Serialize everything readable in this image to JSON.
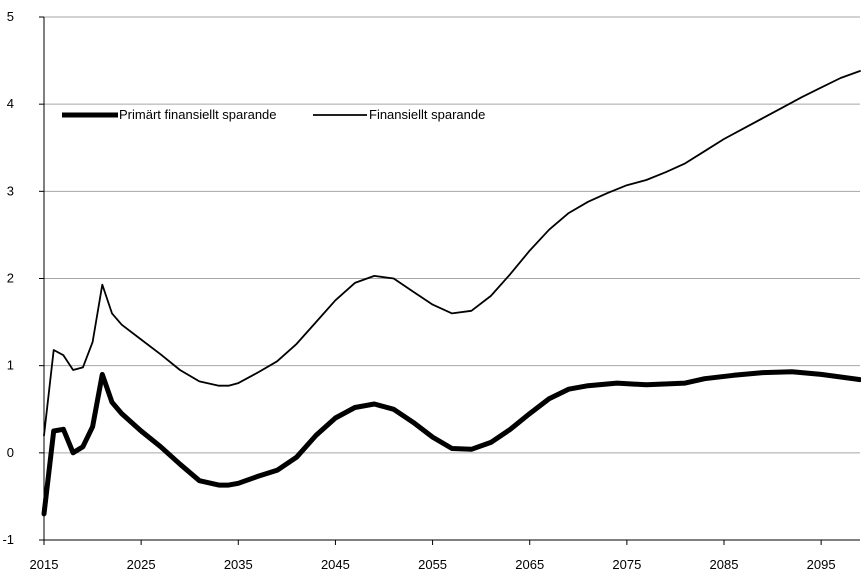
{
  "chart_data": {
    "type": "line",
    "title": "",
    "xlabel": "",
    "ylabel": "",
    "xlim": [
      2015,
      2099
    ],
    "ylim": [
      -1,
      5
    ],
    "x_ticks": [
      "2015",
      "2025",
      "2035",
      "2045",
      "2055",
      "2065",
      "2075",
      "2085",
      "2095"
    ],
    "y_ticks": [
      "-1",
      "0",
      "1",
      "2",
      "3",
      "4",
      "5"
    ],
    "grid": "horizontal",
    "legend_position": "top-left",
    "series": [
      {
        "name": "Primärt finansiellt sparande",
        "line_weight": "thick",
        "color": "#000000",
        "x": [
          2015,
          2016,
          2017,
          2018,
          2019,
          2020,
          2021,
          2022,
          2023,
          2025,
          2027,
          2029,
          2031,
          2033,
          2034,
          2035,
          2037,
          2039,
          2041,
          2043,
          2045,
          2047,
          2049,
          2051,
          2053,
          2055,
          2057,
          2059,
          2061,
          2063,
          2065,
          2067,
          2069,
          2071,
          2074,
          2077,
          2081,
          2083,
          2086,
          2089,
          2092,
          2095,
          2099
        ],
        "values": [
          -0.7,
          0.25,
          0.27,
          0.0,
          0.07,
          0.3,
          0.9,
          0.58,
          0.45,
          0.25,
          0.07,
          -0.13,
          -0.32,
          -0.37,
          -0.37,
          -0.35,
          -0.27,
          -0.2,
          -0.05,
          0.2,
          0.4,
          0.52,
          0.56,
          0.5,
          0.35,
          0.18,
          0.05,
          0.04,
          0.12,
          0.27,
          0.45,
          0.62,
          0.73,
          0.77,
          0.8,
          0.78,
          0.8,
          0.85,
          0.89,
          0.92,
          0.93,
          0.9,
          0.84
        ]
      },
      {
        "name": "Finansiellt sparande",
        "line_weight": "thin",
        "color": "#000000",
        "x": [
          2015,
          2016,
          2017,
          2018,
          2019,
          2020,
          2021,
          2022,
          2023,
          2025,
          2027,
          2029,
          2031,
          2033,
          2034,
          2035,
          2037,
          2039,
          2041,
          2043,
          2045,
          2047,
          2049,
          2051,
          2053,
          2055,
          2057,
          2059,
          2061,
          2063,
          2065,
          2067,
          2069,
          2071,
          2073,
          2075,
          2077,
          2079,
          2081,
          2083,
          2085,
          2087,
          2089,
          2091,
          2093,
          2095,
          2097,
          2099
        ],
        "values": [
          0.2,
          1.18,
          1.12,
          0.95,
          0.98,
          1.27,
          1.93,
          1.6,
          1.47,
          1.3,
          1.13,
          0.95,
          0.82,
          0.77,
          0.77,
          0.8,
          0.92,
          1.05,
          1.25,
          1.5,
          1.75,
          1.95,
          2.03,
          2.0,
          1.85,
          1.7,
          1.6,
          1.63,
          1.8,
          2.05,
          2.32,
          2.56,
          2.75,
          2.88,
          2.98,
          3.07,
          3.13,
          3.22,
          3.32,
          3.46,
          3.6,
          3.72,
          3.84,
          3.96,
          4.08,
          4.19,
          4.3,
          4.38
        ]
      }
    ]
  }
}
